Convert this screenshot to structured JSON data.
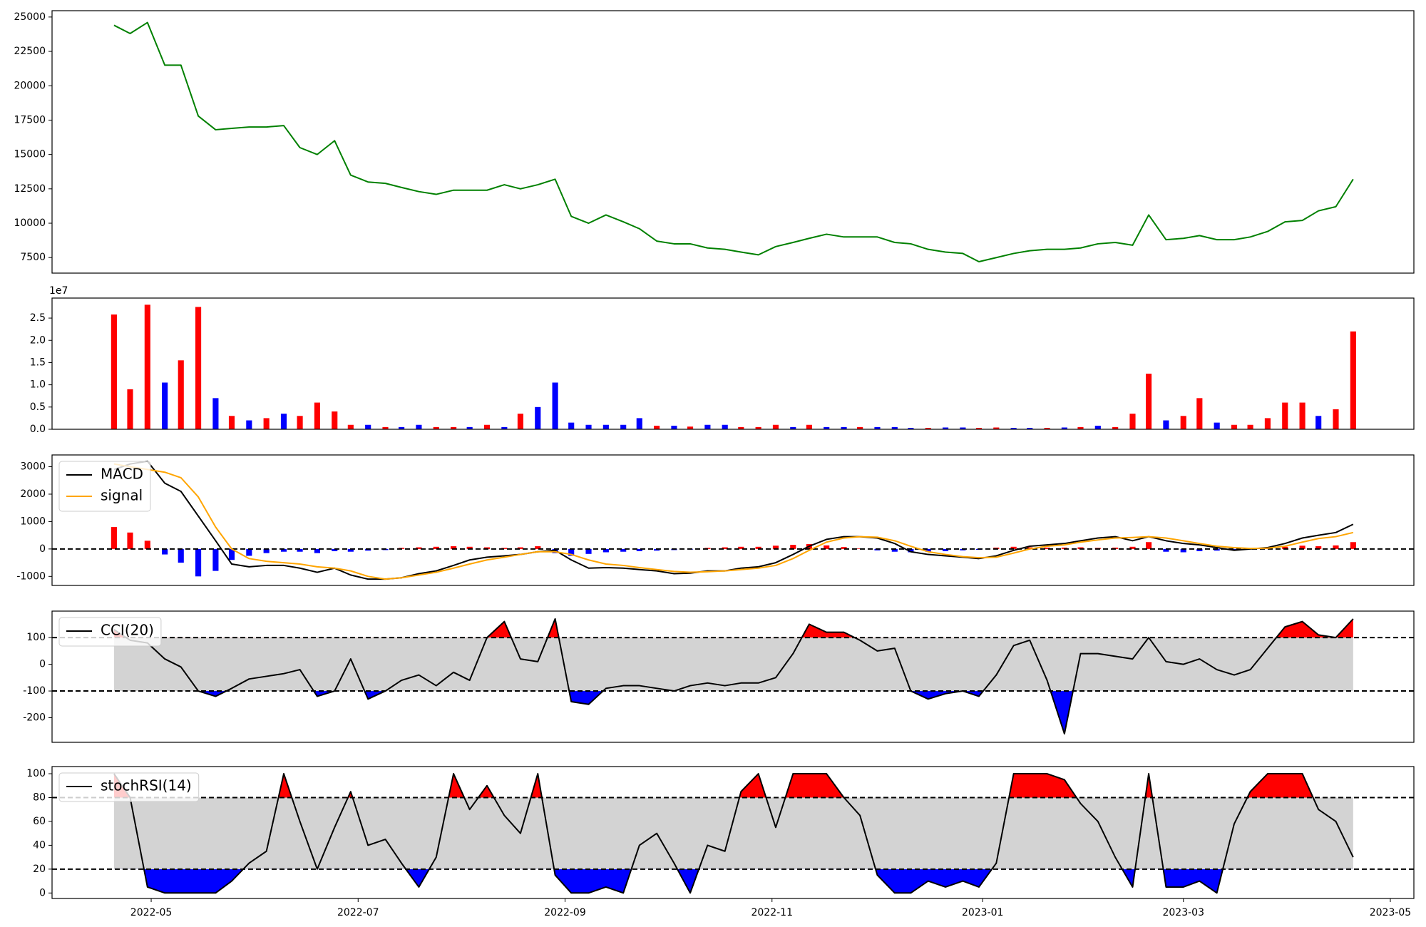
{
  "chart_data": [
    {
      "type": "line",
      "series": [
        {
          "color": "green",
          "values": [
            24400,
            23800,
            24600,
            21500,
            21500,
            17800,
            16800,
            16900,
            17000,
            17000,
            17100,
            15500,
            15000,
            16000,
            13500,
            13000,
            12900,
            12600,
            12300,
            12100,
            12400,
            12400,
            12400,
            12800,
            12500,
            12800,
            13200,
            10500,
            10000,
            10600,
            10100,
            9600,
            8700,
            8500,
            8500,
            8200,
            8100,
            7900,
            7700,
            8300,
            8600,
            8900,
            9200,
            9000,
            9000,
            9000,
            8600,
            8500,
            8100,
            7900,
            7800,
            7200,
            7500,
            7800,
            8000,
            8100,
            8100,
            8200,
            8500,
            8600,
            8400,
            10600,
            8800,
            8900,
            9100,
            8800,
            8800,
            9000,
            9400,
            10100,
            10200,
            10900,
            11200,
            13200
          ]
        }
      ],
      "ylim": [
        6370,
        25460
      ],
      "yticks": [
        7500,
        10000,
        12500,
        15000,
        17500,
        20000,
        22500,
        25000
      ]
    },
    {
      "type": "bar",
      "offset_label": "1e7",
      "values": [
        2.58,
        0.9,
        2.8,
        1.05,
        1.55,
        2.75,
        0.7,
        0.3,
        0.2,
        0.25,
        0.35,
        0.3,
        0.6,
        0.4,
        0.1,
        0.1,
        0.05,
        0.05,
        0.1,
        0.05,
        0.05,
        0.05,
        0.1,
        0.05,
        0.35,
        0.5,
        1.05,
        0.15,
        0.1,
        0.1,
        0.1,
        0.25,
        0.08,
        0.08,
        0.06,
        0.1,
        0.1,
        0.05,
        0.05,
        0.1,
        0.05,
        0.1,
        0.05,
        0.05,
        0.05,
        0.05,
        0.05,
        0.03,
        0.03,
        0.04,
        0.04,
        0.03,
        0.04,
        0.03,
        0.03,
        0.03,
        0.04,
        0.05,
        0.08,
        0.05,
        0.35,
        1.25,
        0.2,
        0.3,
        0.7,
        0.15,
        0.1,
        0.1,
        0.25,
        0.6,
        0.6,
        0.3,
        0.45,
        2.2
      ],
      "colors": [
        "red",
        "red",
        "red",
        "blue",
        "red",
        "red",
        "blue",
        "red",
        "blue",
        "red",
        "blue",
        "red",
        "red",
        "red",
        "red",
        "blue",
        "red",
        "blue",
        "blue",
        "red",
        "red",
        "blue",
        "red",
        "blue",
        "red",
        "blue",
        "blue",
        "blue",
        "blue",
        "blue",
        "blue",
        "blue",
        "red",
        "blue",
        "red",
        "blue",
        "blue",
        "red",
        "red",
        "red",
        "blue",
        "red",
        "blue",
        "blue",
        "red",
        "blue",
        "blue",
        "blue",
        "red",
        "blue",
        "blue",
        "red",
        "red",
        "blue",
        "blue",
        "red",
        "blue",
        "red",
        "blue",
        "red",
        "red",
        "red",
        "blue",
        "red",
        "red",
        "blue",
        "red",
        "red",
        "red",
        "red",
        "red",
        "blue",
        "red",
        "red"
      ],
      "ylim": [
        0,
        2.95
      ],
      "yticks": [
        {
          "value": 0,
          "label": "0.0"
        },
        0.5,
        {
          "value": 1,
          "label": "1.0"
        },
        1.5,
        {
          "value": 2,
          "label": "2.0"
        },
        2.5
      ]
    },
    {
      "type": "line",
      "legend": "upper left",
      "series": [
        {
          "name": "MACD",
          "color": "black",
          "values": [
            2900,
            3100,
            3200,
            2400,
            2100,
            1200,
            300,
            -550,
            -650,
            -600,
            -600,
            -700,
            -850,
            -700,
            -950,
            -1100,
            -1100,
            -1050,
            -900,
            -800,
            -600,
            -400,
            -300,
            -250,
            -200,
            -100,
            -50,
            -400,
            -700,
            -680,
            -700,
            -750,
            -800,
            -900,
            -880,
            -800,
            -800,
            -700,
            -650,
            -500,
            -200,
            100,
            350,
            450,
            450,
            400,
            200,
            -100,
            -200,
            -250,
            -300,
            -350,
            -250,
            -50,
            100,
            150,
            200,
            300,
            400,
            450,
            300,
            450,
            300,
            200,
            150,
            50,
            -50,
            0,
            50,
            200,
            400,
            500,
            600,
            900
          ]
        },
        {
          "name": "signal",
          "color": "orange",
          "values": [
            3100,
            3000,
            2900,
            2800,
            2600,
            1900,
            800,
            0,
            -350,
            -450,
            -500,
            -550,
            -650,
            -700,
            -800,
            -1000,
            -1100,
            -1050,
            -950,
            -850,
            -700,
            -550,
            -400,
            -300,
            -200,
            -100,
            -100,
            -200,
            -400,
            -550,
            -600,
            -680,
            -750,
            -820,
            -850,
            -830,
            -800,
            -750,
            -700,
            -600,
            -350,
            -50,
            250,
            400,
            450,
            430,
            300,
            100,
            -100,
            -200,
            -280,
            -320,
            -300,
            -150,
            0,
            100,
            150,
            250,
            330,
            400,
            420,
            450,
            400,
            300,
            200,
            100,
            50,
            20,
            30,
            100,
            250,
            380,
            450,
            600
          ]
        }
      ],
      "histogram": {
        "up_color": "red",
        "down_color": "blue",
        "values": [
          800,
          600,
          300,
          -200,
          -500,
          -1000,
          -800,
          -400,
          -250,
          -150,
          -100,
          -100,
          -150,
          -80,
          -100,
          -60,
          -40,
          40,
          60,
          80,
          100,
          80,
          60,
          40,
          60,
          100,
          -150,
          -250,
          -180,
          -120,
          -100,
          -80,
          -60,
          -40,
          -20,
          40,
          60,
          80,
          80,
          120,
          150,
          180,
          130,
          70,
          20,
          -50,
          -100,
          -120,
          -100,
          -80,
          -50,
          -30,
          50,
          80,
          60,
          50,
          50,
          60,
          40,
          50,
          80,
          250,
          -100,
          -120,
          -80,
          -60,
          -50,
          -20,
          30,
          80,
          120,
          100,
          130,
          250
        ]
      },
      "reference_lines": [
        0
      ],
      "ylim": [
        -1330,
        3430
      ],
      "yticks": [
        -1000,
        0,
        1000,
        2000,
        3000
      ]
    },
    {
      "type": "line",
      "legend": "upper left",
      "series": [
        {
          "name": "CCI(20)",
          "color": "black",
          "values": [
            130,
            90,
            80,
            20,
            -10,
            -100,
            -120,
            -90,
            -55,
            -45,
            -35,
            -20,
            -120,
            -100,
            20,
            -130,
            -100,
            -60,
            -40,
            -80,
            -30,
            -60,
            100,
            160,
            20,
            10,
            170,
            -140,
            -150,
            -90,
            -80,
            -80,
            -90,
            -100,
            -80,
            -70,
            -80,
            -70,
            -70,
            -50,
            40,
            150,
            120,
            120,
            90,
            50,
            60,
            -100,
            -130,
            -110,
            -100,
            -120,
            -40,
            70,
            90,
            -60,
            -260,
            40,
            40,
            30,
            20,
            100,
            10,
            0,
            20,
            -20,
            -40,
            -20,
            60,
            140,
            160,
            110,
            100,
            170
          ]
        }
      ],
      "band": [
        -100,
        100
      ],
      "band_color": "lightgray",
      "upper_fill": "red",
      "lower_fill": "blue",
      "ylim": [
        -292,
        199
      ],
      "yticks": [
        -200,
        -100,
        0,
        100
      ]
    },
    {
      "type": "line",
      "legend": "upper left",
      "series": [
        {
          "name": "stochRSI(14)",
          "color": "black",
          "values": [
            100,
            80,
            5,
            0,
            0,
            0,
            0,
            10,
            25,
            35,
            100,
            60,
            20,
            55,
            85,
            40,
            45,
            25,
            5,
            30,
            100,
            70,
            90,
            65,
            50,
            100,
            15,
            0,
            0,
            5,
            0,
            40,
            50,
            25,
            0,
            40,
            35,
            85,
            100,
            55,
            100,
            100,
            100,
            80,
            65,
            15,
            0,
            0,
            10,
            5,
            10,
            5,
            25,
            100,
            100,
            100,
            95,
            75,
            60,
            30,
            5,
            100,
            5,
            5,
            10,
            0,
            58,
            85,
            100,
            100,
            100,
            70,
            60,
            30
          ]
        }
      ],
      "band": [
        20,
        80
      ],
      "band_color": "lightgray",
      "upper_fill": "red",
      "lower_fill": "blue",
      "ylim": [
        -4.6,
        106
      ],
      "yticks": [
        0,
        20,
        40,
        60,
        80,
        100
      ],
      "x": [
        2022.299,
        2022.312,
        2022.326,
        2022.34,
        2022.353,
        2022.367,
        2022.381,
        2022.394,
        2022.408,
        2022.422,
        2022.436,
        2022.449,
        2022.463,
        2022.477,
        2022.49,
        2022.504,
        2022.518,
        2022.531,
        2022.545,
        2022.559,
        2022.573,
        2022.586,
        2022.6,
        2022.614,
        2022.627,
        2022.641,
        2022.655,
        2022.668,
        2022.682,
        2022.696,
        2022.71,
        2022.723,
        2022.737,
        2022.751,
        2022.764,
        2022.778,
        2022.792,
        2022.805,
        2022.819,
        2022.833,
        2022.847,
        2022.86,
        2022.874,
        2022.888,
        2022.901,
        2022.915,
        2022.929,
        2022.942,
        2022.956,
        2022.97,
        2022.984,
        2022.997,
        2023.011,
        2023.025,
        2023.038,
        2023.052,
        2023.066,
        2023.079,
        2023.093,
        2023.107,
        2023.121,
        2023.134,
        2023.148,
        2023.162,
        2023.175,
        2023.189,
        2023.203,
        2023.216,
        2023.23,
        2023.244,
        2023.258,
        2023.271,
        2023.285,
        2023.299
      ],
      "xlim": [
        2022.249,
        2023.348
      ],
      "xticks": [
        {
          "value": 2022.329,
          "label": "2022-05"
        },
        {
          "value": 2022.496,
          "label": "2022-07"
        },
        {
          "value": 2022.663,
          "label": "2022-09"
        },
        {
          "value": 2022.83,
          "label": "2022-11"
        },
        {
          "value": 2023.0,
          "label": "2023-01"
        },
        {
          "value": 2023.162,
          "label": "2023-03"
        },
        {
          "value": 2023.329,
          "label": "2023-05"
        }
      ]
    }
  ]
}
